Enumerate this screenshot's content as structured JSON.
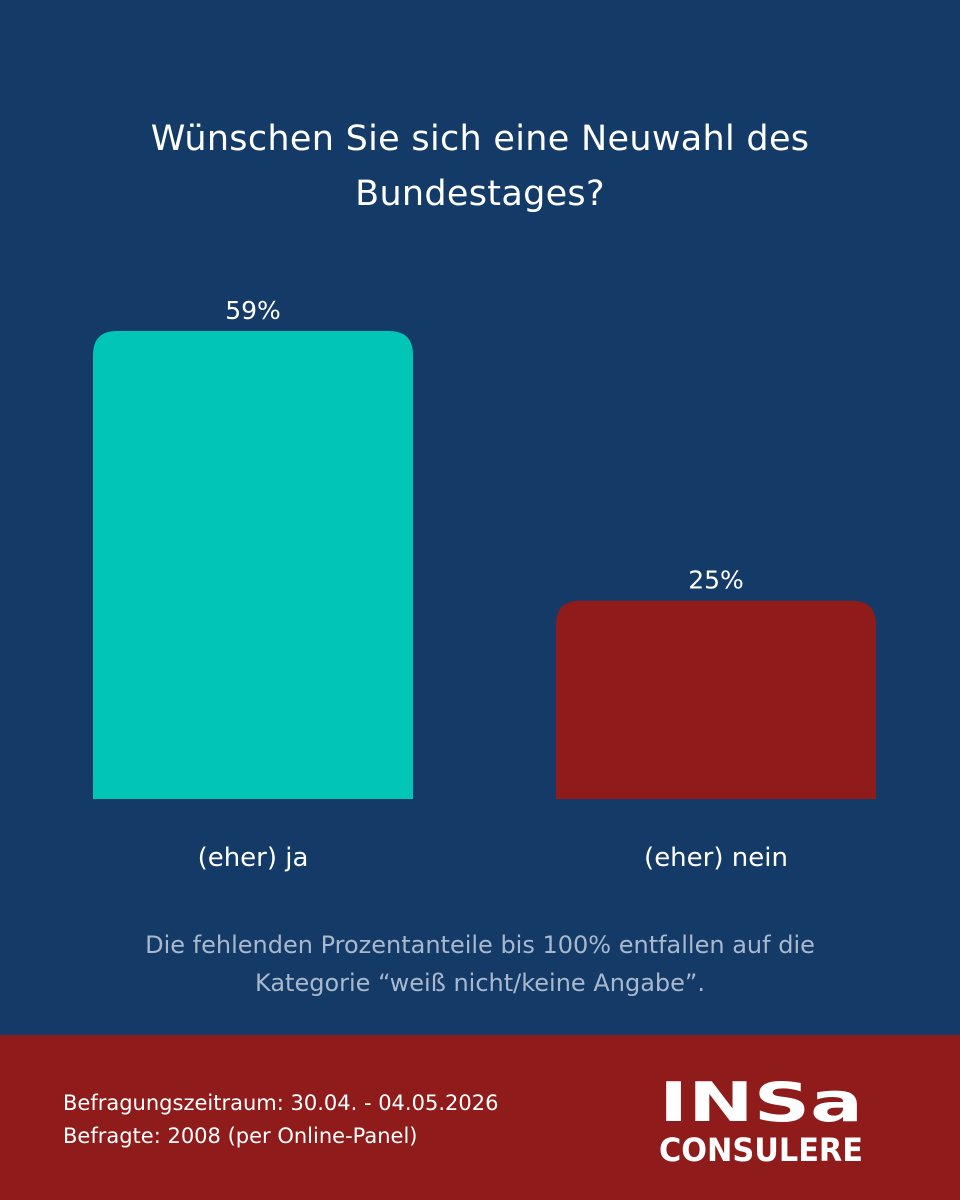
{
  "title_lines": [
    "Wünschen Sie sich eine Neuwahl des",
    "Bundestages?"
  ],
  "colors": {
    "background": "#143a68",
    "ja": "#00c5b7",
    "nein": "#8f1b1b",
    "footer": "#8f1b1b",
    "note_text": "#a9b8cc"
  },
  "chart_data": {
    "type": "bar",
    "title": "Wünschen Sie sich eine Neuwahl des Bundestages?",
    "categories": [
      "(eher) ja",
      "(eher) nein"
    ],
    "values": [
      59,
      25
    ],
    "value_labels": [
      "59%",
      "25%"
    ],
    "unit": "%",
    "ylim": [
      0,
      59
    ],
    "grid": false,
    "legend": "none"
  },
  "note_lines": [
    "Die fehlenden Prozentanteile bis 100% entfallen auf die",
    "Kategorie “weiß nicht/keine Angabe”."
  ],
  "footer": {
    "period": "Befragungszeitraum: 30.04. - 04.05.2026",
    "respondents": "Befragte: 2008 (per Online-Panel)"
  },
  "logo": {
    "line1": "INSa",
    "line2": "CONSULERE"
  }
}
